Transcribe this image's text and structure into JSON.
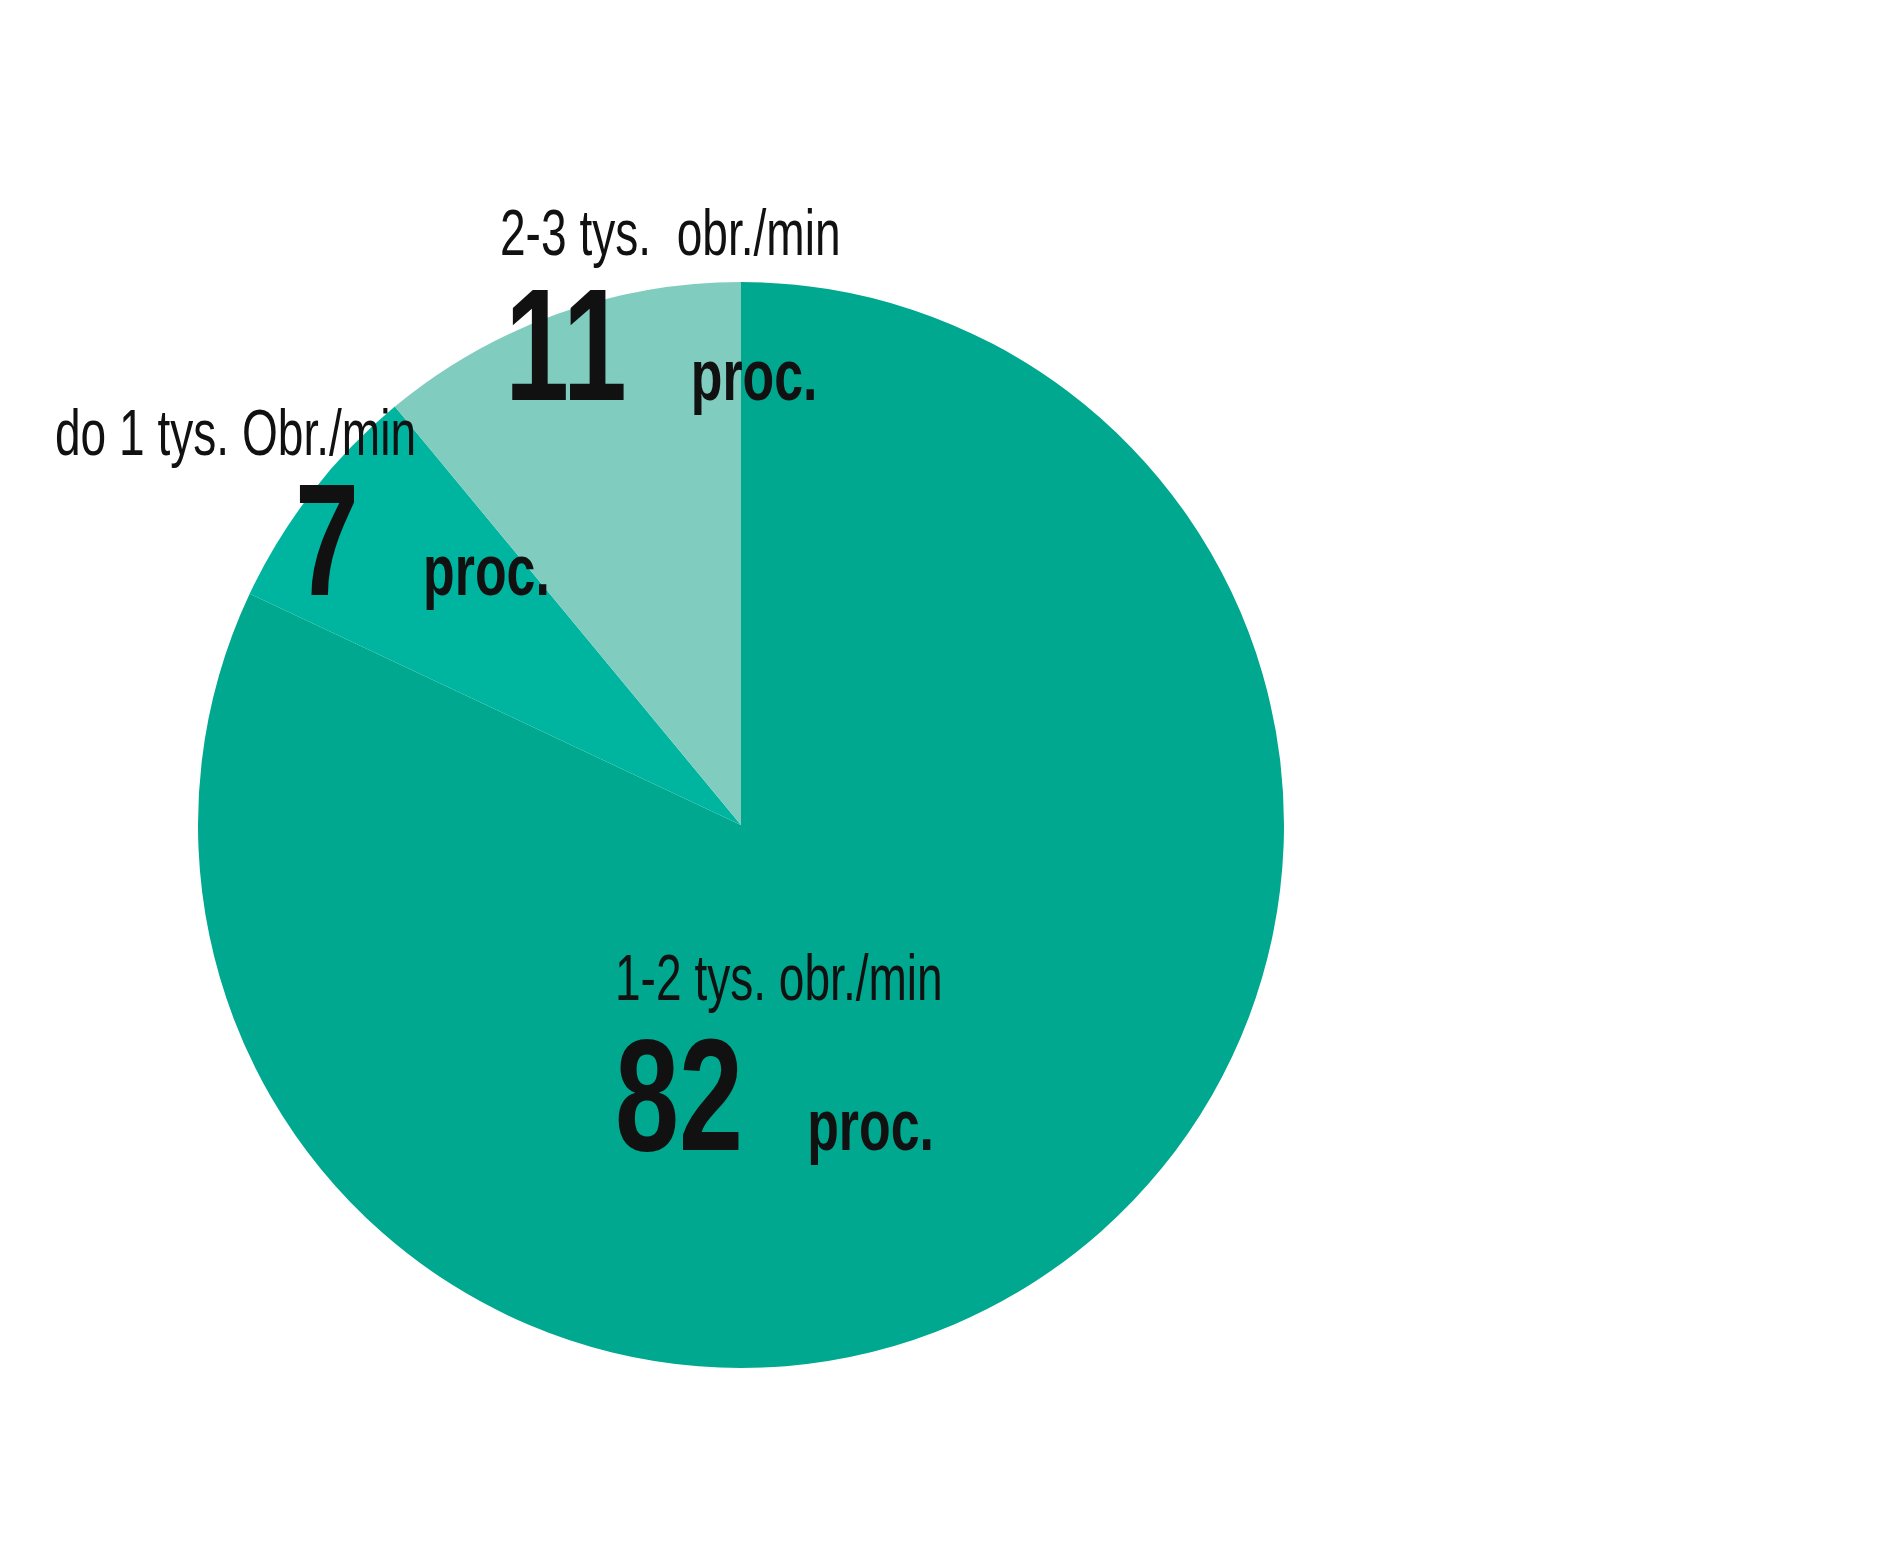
{
  "chart_data": {
    "type": "pie",
    "categories": [
      "1-2 tys. obr./min",
      "do 1 tys. Obr./min",
      "2-3 tys.  obr./min"
    ],
    "values": [
      82,
      7,
      11
    ],
    "colors": [
      "#00a88f",
      "#00b5a0",
      "#80cdc0"
    ],
    "value_labels": [
      "82 proc.",
      "7 proc.",
      "11 proc."
    ],
    "legend": false
  }
}
